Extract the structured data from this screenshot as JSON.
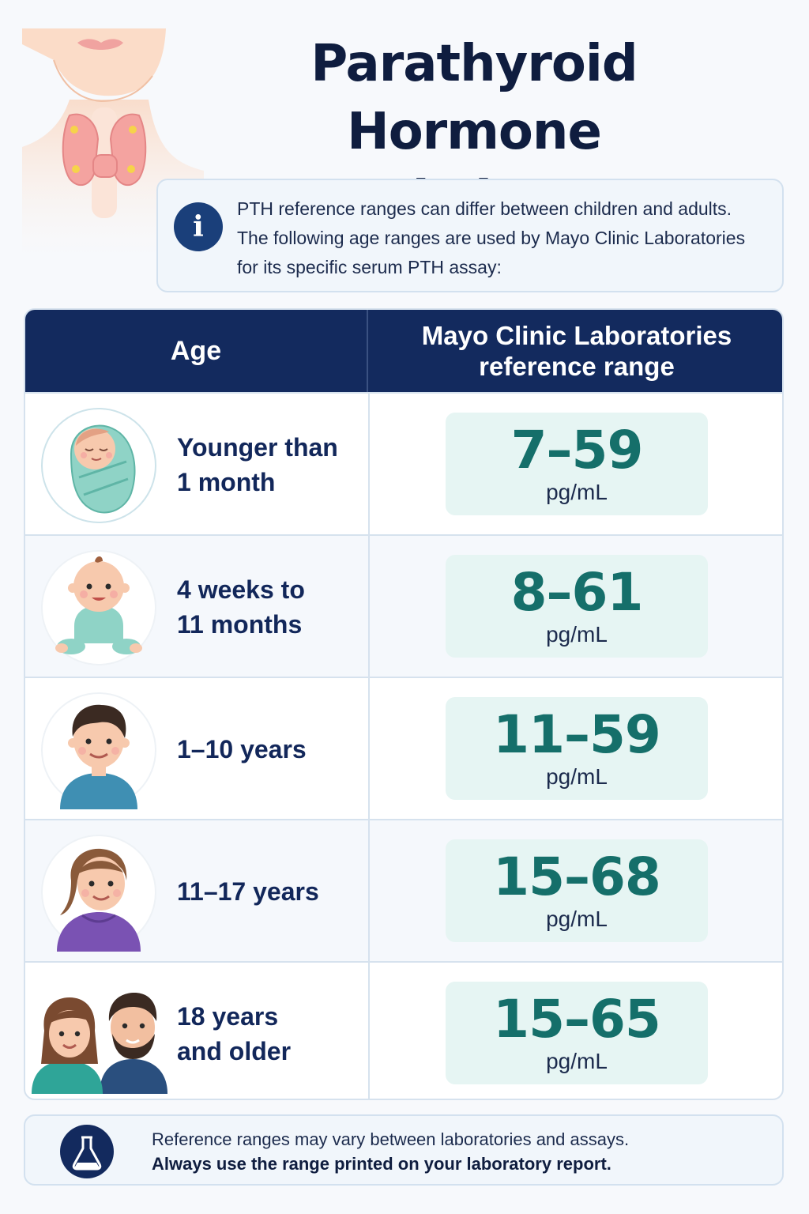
{
  "title": {
    "line1": "Parathyroid Hormone",
    "line2": "Levels by Age"
  },
  "intro": {
    "line1": "PTH reference ranges can differ between children and adults.",
    "line2": "The following age ranges are used by Mayo Clinic Laboratories",
    "line3": "for its specific serum PTH assay:"
  },
  "table": {
    "header": {
      "age": "Age",
      "range_line1": "Mayo Clinic Laboratories",
      "range_line2": "reference range"
    },
    "rows": [
      {
        "age_line1": "Younger than",
        "age_line2": "1 month",
        "range": "7–59",
        "unit": "pg/mL",
        "icon": "newborn-icon"
      },
      {
        "age_line1": "4 weeks to",
        "age_line2": "11 months",
        "range": "8–61",
        "unit": "pg/mL",
        "icon": "infant-icon"
      },
      {
        "age_line1": "1–10 years",
        "age_line2": "",
        "range": "11–59",
        "unit": "pg/mL",
        "icon": "child-icon"
      },
      {
        "age_line1": "11–17 years",
        "age_line2": "",
        "range": "15–68",
        "unit": "pg/mL",
        "icon": "teen-icon"
      },
      {
        "age_line1": "18 years",
        "age_line2": "and older",
        "range": "15–65",
        "unit": "pg/mL",
        "icon": "adults-icon"
      }
    ]
  },
  "footer": {
    "line1": "Reference ranges may vary between laboratories and assays.",
    "line2": "Always use the range printed on your laboratory report."
  },
  "icons": {
    "info": "i",
    "neck": "thyroid-illustration",
    "lab": "flask-icon"
  },
  "colors": {
    "navy": "#132a5e",
    "teal": "#156f6a",
    "range_bg": "#e6f5f3"
  }
}
